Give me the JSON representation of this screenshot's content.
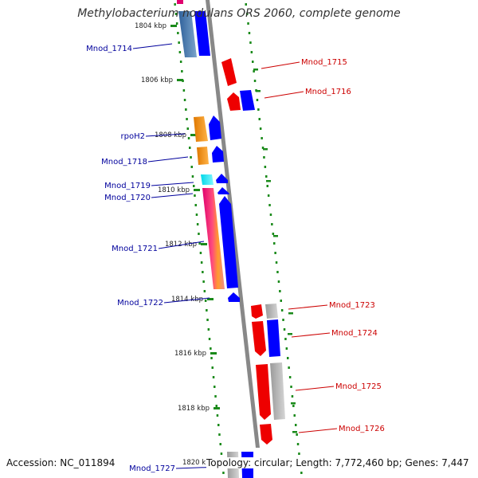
{
  "title": "Methylobacterium nodulans ORS 2060, complete genome",
  "footer": {
    "accession": "Accession: NC_011894",
    "summary": "Topology: circular; Length: 7,772,460 bp; Genes: 7,447"
  },
  "colors": {
    "label_left": "#00009c",
    "label_right": "#cc0000",
    "dots": "#1a8a1a",
    "backbone": "#888888",
    "forward": "#0000ff",
    "reverse": "#ee0000"
  },
  "ticks": [
    "1804 kbp",
    "1806 kbp",
    "1808 kbp",
    "1810 kbp",
    "1812 kbp",
    "1814 kbp",
    "1816 kbp",
    "1818 kbp",
    "1820 kbp"
  ],
  "genes_left": [
    "Mnod_1714",
    "rpoH2",
    "Mnod_1718",
    "Mnod_1719",
    "Mnod_1720",
    "Mnod_1721",
    "Mnod_1722",
    "Mnod_1727"
  ],
  "genes_right": [
    "Mnod_1715",
    "Mnod_1716",
    "Mnod_1723",
    "Mnod_1724",
    "Mnod_1725",
    "Mnod_1726"
  ]
}
